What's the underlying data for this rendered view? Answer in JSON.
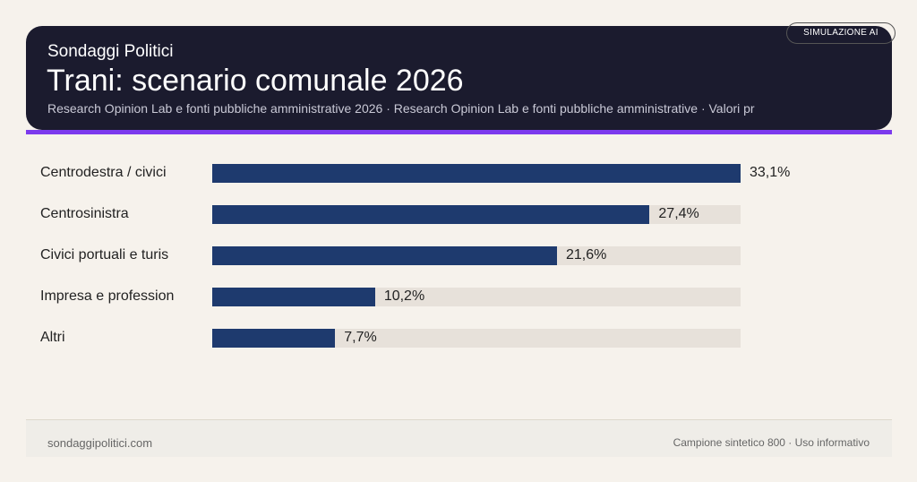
{
  "header": {
    "brand": "Sondaggi Politici",
    "title": "Trani: scenario comunale 2026",
    "subtitle": "Research Opinion Lab e fonti pubbliche amministrative 2026 · Research Opinion Lab e fonti pubbliche amministrative · Valori pr",
    "badge": "SIMULAZIONE AI"
  },
  "colors": {
    "bar": "#1e3a6e",
    "track": "#e7e1da",
    "accent": "#7c3aed",
    "header_bg": "#1b1b2e"
  },
  "chart_data": {
    "type": "bar",
    "orientation": "horizontal",
    "categories": [
      "Centrodestra / civici",
      "Centrosinistra",
      "Civici portuali e turis",
      "Impresa e profession",
      "Altri"
    ],
    "values": [
      33.1,
      27.4,
      21.6,
      10.2,
      7.7
    ],
    "value_labels": [
      "33,1%",
      "27,4%",
      "21,6%",
      "10,2%",
      "7,7%"
    ],
    "xlim": [
      0,
      33.1
    ],
    "grid": false,
    "legend": "none"
  },
  "footer": {
    "left": "sondaggipolitici.com",
    "right": "Campione sintetico 800 · Uso informativo"
  }
}
